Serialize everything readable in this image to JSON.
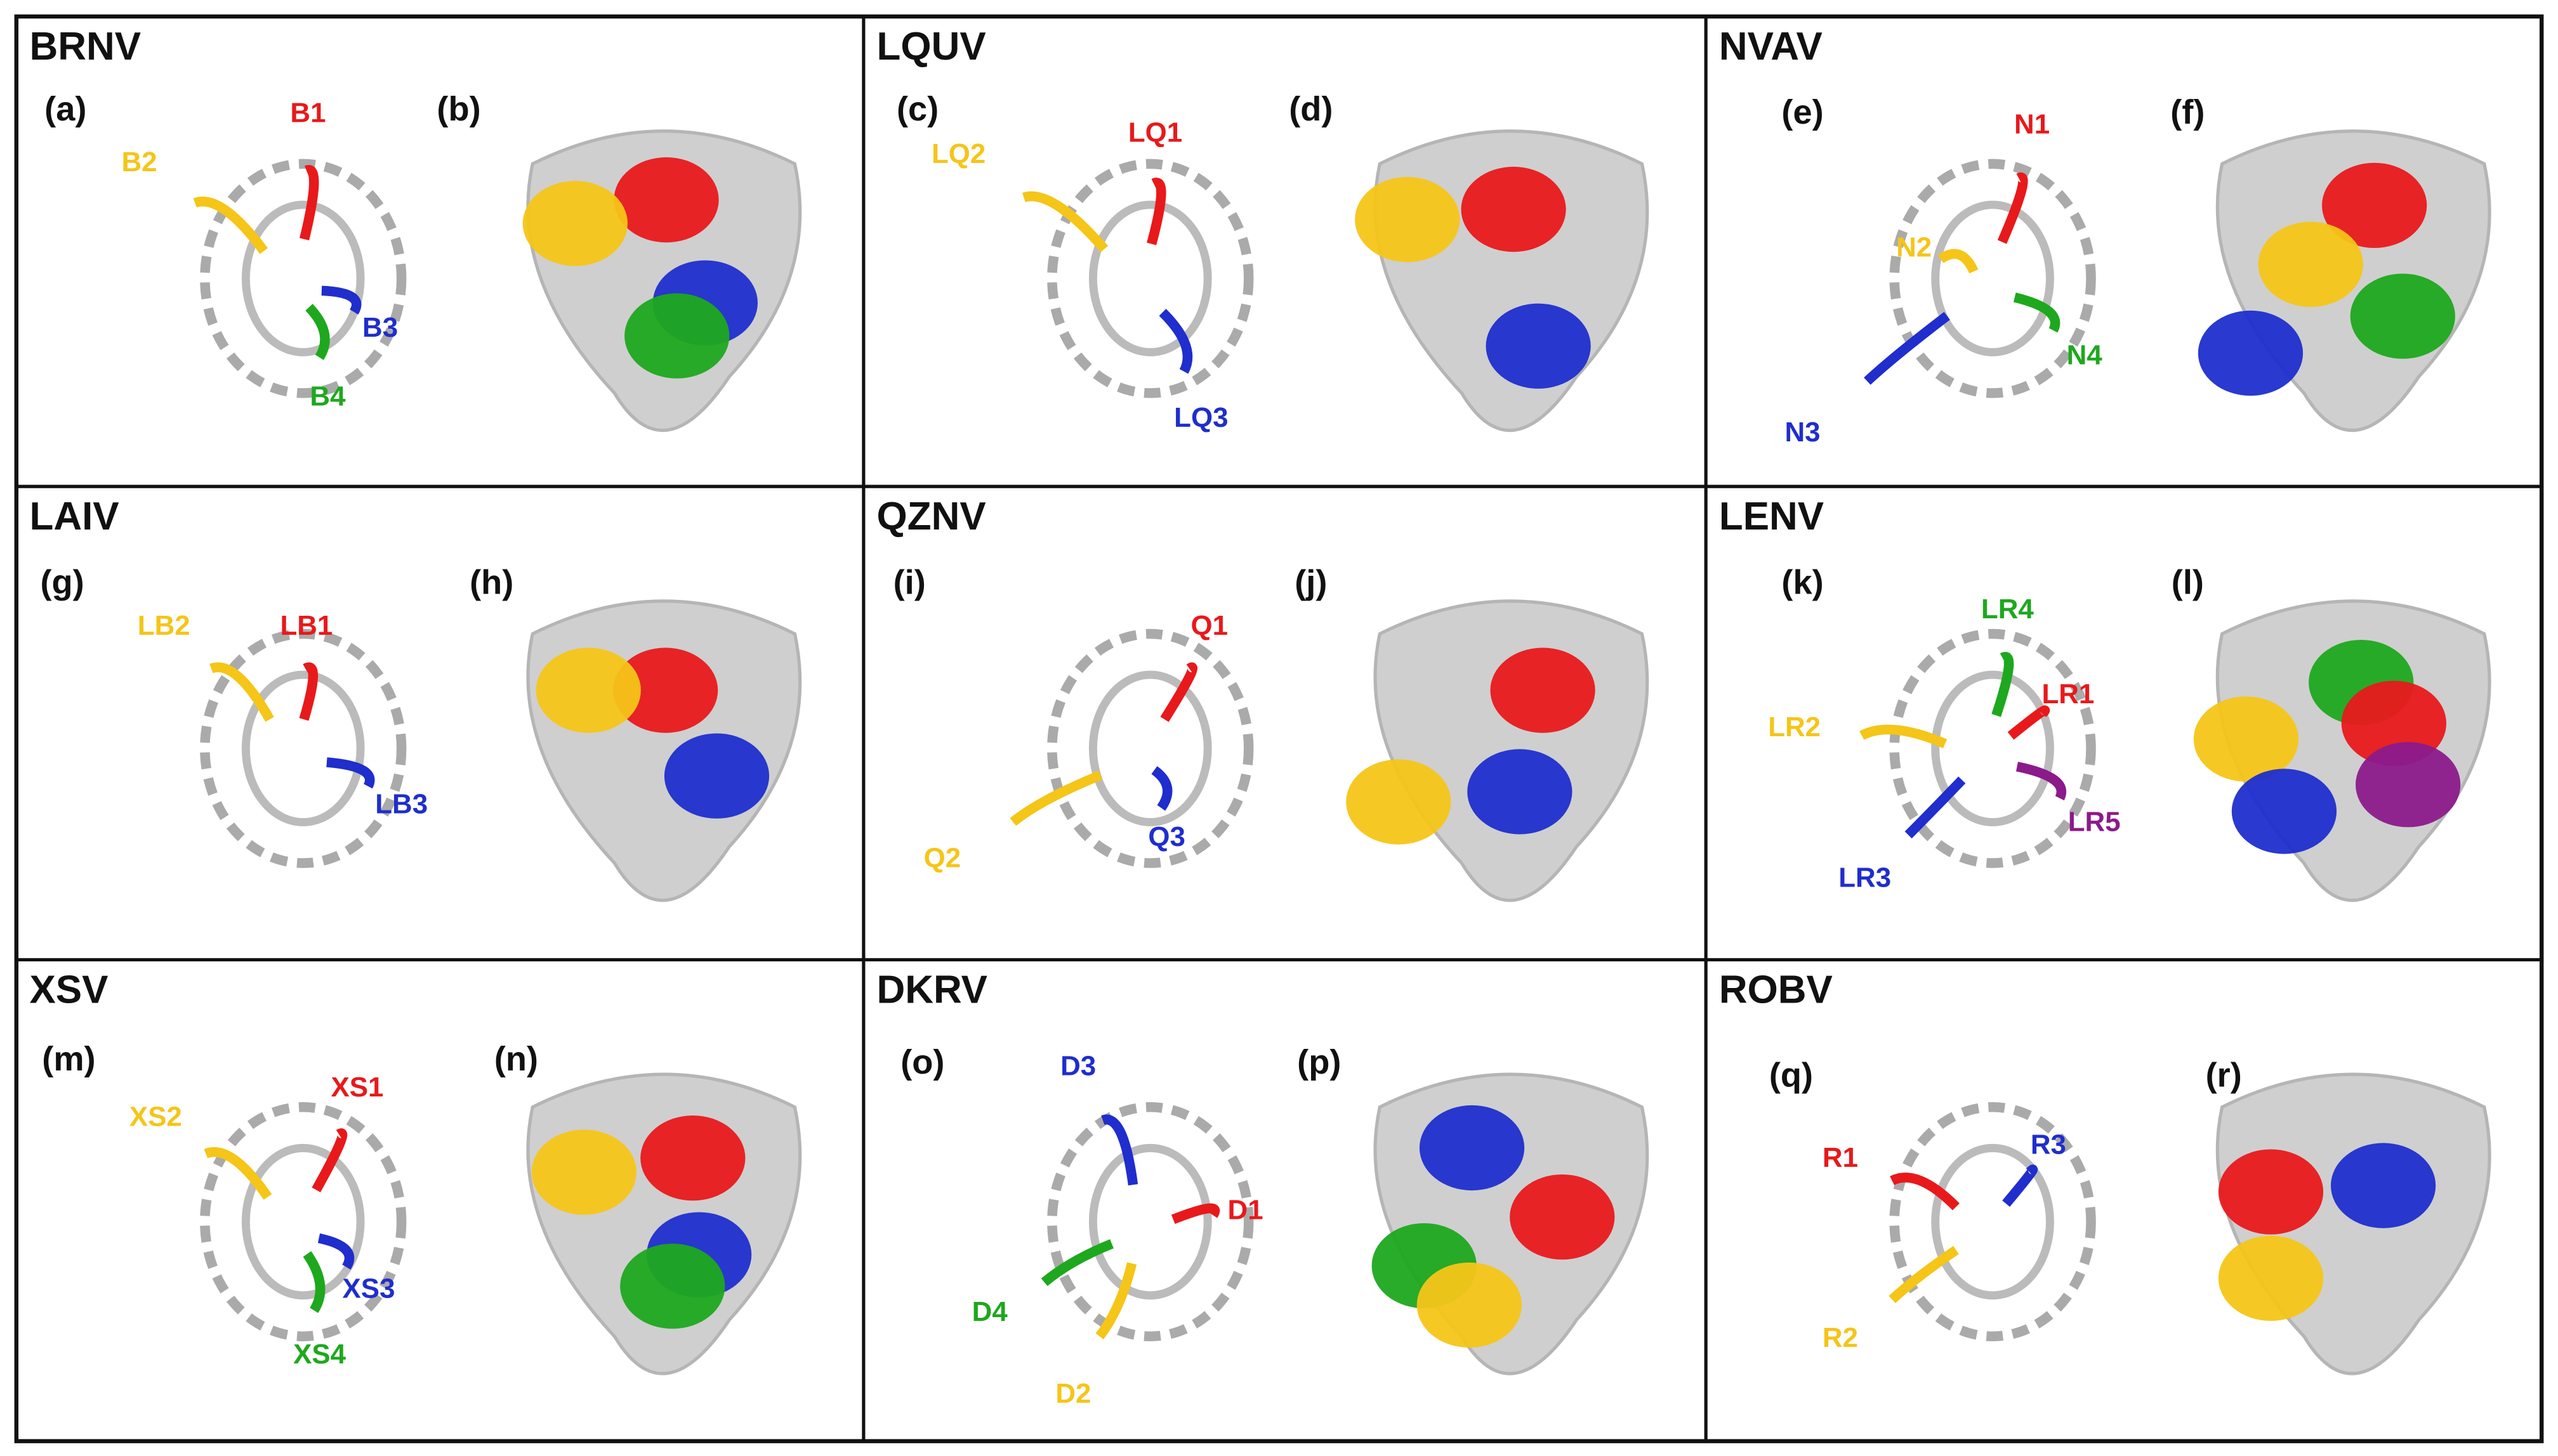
{
  "panels": [
    {
      "name": "BRNV",
      "left_label": "(a)",
      "right_label": "(b)",
      "regions": [
        {
          "label": "B1",
          "color": "#e8191b"
        },
        {
          "label": "B2",
          "color": "#f5c518"
        },
        {
          "label": "B3",
          "color": "#1f2ecc"
        },
        {
          "label": "B4",
          "color": "#1ea81e"
        }
      ]
    },
    {
      "name": "LQUV",
      "left_label": "(c)",
      "right_label": "(d)",
      "regions": [
        {
          "label": "LQ1",
          "color": "#e8191b"
        },
        {
          "label": "LQ2",
          "color": "#f5c518"
        },
        {
          "label": "LQ3",
          "color": "#1f2ecc"
        }
      ]
    },
    {
      "name": "NVAV",
      "left_label": "(e)",
      "right_label": "(f)",
      "regions": [
        {
          "label": "N1",
          "color": "#e8191b"
        },
        {
          "label": "N2",
          "color": "#f5c518"
        },
        {
          "label": "N3",
          "color": "#1f2ecc"
        },
        {
          "label": "N4",
          "color": "#1ea81e"
        }
      ]
    },
    {
      "name": "LAIV",
      "left_label": "(g)",
      "right_label": "(h)",
      "regions": [
        {
          "label": "LB1",
          "color": "#e8191b"
        },
        {
          "label": "LB2",
          "color": "#f5c518"
        },
        {
          "label": "LB3",
          "color": "#1f2ecc"
        }
      ]
    },
    {
      "name": "QZNV",
      "left_label": "(i)",
      "right_label": "(j)",
      "regions": [
        {
          "label": "Q1",
          "color": "#e8191b"
        },
        {
          "label": "Q2",
          "color": "#f5c518"
        },
        {
          "label": "Q3",
          "color": "#1f2ecc"
        }
      ]
    },
    {
      "name": "LENV",
      "left_label": "(k)",
      "right_label": "(l)",
      "regions": [
        {
          "label": "LR4",
          "color": "#1ea81e"
        },
        {
          "label": "LR1",
          "color": "#e8191b"
        },
        {
          "label": "LR2",
          "color": "#f5c518"
        },
        {
          "label": "LR5",
          "color": "#8b1a8b"
        },
        {
          "label": "LR3",
          "color": "#1f2ecc"
        }
      ]
    },
    {
      "name": "XSV",
      "left_label": "(m)",
      "right_label": "(n)",
      "regions": [
        {
          "label": "XS1",
          "color": "#e8191b"
        },
        {
          "label": "XS2",
          "color": "#f5c518"
        },
        {
          "label": "XS3",
          "color": "#1f2ecc"
        },
        {
          "label": "XS4",
          "color": "#1ea81e"
        }
      ]
    },
    {
      "name": "DKRV",
      "left_label": "(o)",
      "right_label": "(p)",
      "regions": [
        {
          "label": "D3",
          "color": "#1f2ecc"
        },
        {
          "label": "D1",
          "color": "#e8191b"
        },
        {
          "label": "D4",
          "color": "#1ea81e"
        },
        {
          "label": "D2",
          "color": "#f5c518"
        }
      ]
    },
    {
      "name": "ROBV",
      "left_label": "(q)",
      "right_label": "(r)",
      "regions": [
        {
          "label": "R1",
          "color": "#e8191b"
        },
        {
          "label": "R3",
          "color": "#1f2ecc"
        },
        {
          "label": "R2",
          "color": "#f5c518"
        }
      ]
    }
  ]
}
